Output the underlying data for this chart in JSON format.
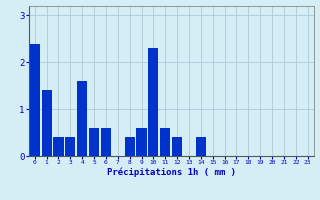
{
  "values": [
    2.4,
    1.4,
    0.4,
    0.4,
    1.6,
    0.6,
    0.6,
    0.0,
    0.4,
    0.6,
    2.3,
    0.6,
    0.4,
    0.0,
    0.4,
    0.0,
    0.0,
    0.0,
    0.0,
    0.0,
    0.0,
    0.0,
    0.0,
    0.0
  ],
  "bar_color": "#0033cc",
  "background_color": "#d5eef5",
  "grid_color": "#b0c8d8",
  "xlabel": "Précipitations 1h ( mm )",
  "xlabel_color": "#0000bb",
  "tick_color": "#0000bb",
  "ylim": [
    0,
    3.2
  ],
  "yticks": [
    0,
    1,
    2,
    3
  ],
  "num_bars": 24,
  "bar_width": 0.85,
  "figsize": [
    3.2,
    2.0
  ],
  "dpi": 100
}
